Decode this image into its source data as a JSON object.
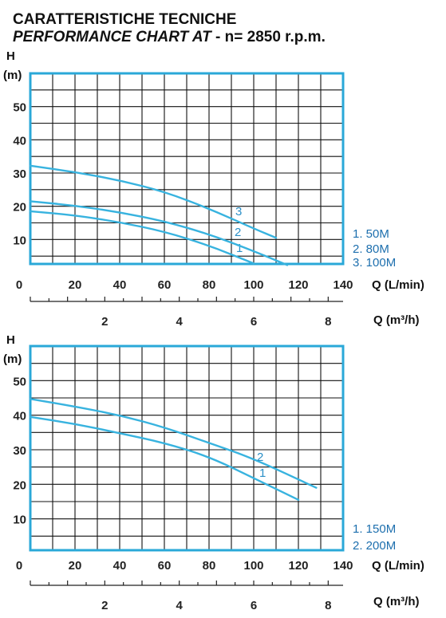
{
  "heading": {
    "line1": "CARATTERISTICHE TECNICHE",
    "line2_italic": "PERFORMANCE CHART AT",
    "line2_rest": " - n= 2850 r.p.m."
  },
  "colors": {
    "grid": "#111111",
    "border": "#2aa8d8",
    "curve": "#38b3df",
    "label": "#2a8fc7",
    "legend": "#1d6fae"
  },
  "chart_data": [
    {
      "type": "line",
      "ylabel": "H",
      "yunit": "(m)",
      "xlabel": "Q (L/min)",
      "x2label": "Q (m³/h)",
      "xlim": [
        0,
        140
      ],
      "ylim": [
        0,
        60
      ],
      "x_ticks": [
        "0",
        "20",
        "40",
        "60",
        "80",
        "100",
        "120",
        "140"
      ],
      "y_ticks": [
        "10",
        "20",
        "30",
        "40",
        "50"
      ],
      "x2_ticks": [
        "2",
        "4",
        "6",
        "8"
      ],
      "grid": true,
      "series": [
        {
          "name": "1",
          "x": [
            0,
            20,
            40,
            60,
            80,
            100
          ],
          "y": [
            18.5,
            17.3,
            15.2,
            12.4,
            8.2,
            2.8
          ]
        },
        {
          "name": "2",
          "x": [
            0,
            20,
            40,
            60,
            80,
            100,
            115
          ],
          "y": [
            21.5,
            20.2,
            18.2,
            15.5,
            11.6,
            6.5,
            2.3
          ]
        },
        {
          "name": "3",
          "x": [
            0,
            20,
            40,
            60,
            80,
            100,
            110
          ],
          "y": [
            32.2,
            30.3,
            27.8,
            24.4,
            19.3,
            13.3,
            10.5
          ]
        }
      ],
      "legend": [
        "1.  50M",
        "2.  80M",
        "3. 100M"
      ]
    },
    {
      "type": "line",
      "ylabel": "H",
      "yunit": "(m)",
      "xlabel": "Q (L/min)",
      "x2label": "Q (m³/h)",
      "xlim": [
        0,
        140
      ],
      "ylim": [
        0,
        60
      ],
      "x_ticks": [
        "0",
        "20",
        "40",
        "60",
        "80",
        "100",
        "120",
        "140"
      ],
      "y_ticks": [
        "10",
        "20",
        "30",
        "40",
        "50"
      ],
      "x2_ticks": [
        "2",
        "4",
        "6",
        "8"
      ],
      "grid": true,
      "series": [
        {
          "name": "1",
          "x": [
            0,
            20,
            40,
            60,
            80,
            100,
            120
          ],
          "y": [
            39.5,
            37.5,
            34.8,
            32,
            28,
            21.8,
            15.5
          ]
        },
        {
          "name": "2",
          "x": [
            0,
            20,
            40,
            60,
            80,
            100,
            128
          ],
          "y": [
            44.7,
            42.5,
            40,
            36.5,
            32,
            27.4,
            19
          ]
        }
      ],
      "legend": [
        "1.  150M",
        "2.  200M"
      ]
    }
  ]
}
